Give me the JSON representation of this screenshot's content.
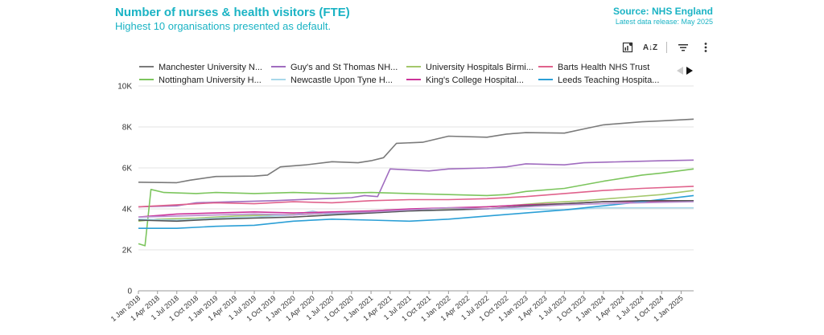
{
  "header": {
    "title": "Number of nurses & health visitors (FTE)",
    "subtitle": "Highest 10 organisations presented as default.",
    "source": "Source: NHS England",
    "release": "Latest data release: May 2025"
  },
  "toolbar": {
    "sort_label": "A↓Z",
    "icons": [
      "chart-settings-icon",
      "sort-az-icon",
      "filter-icon",
      "more-vertical-icon"
    ]
  },
  "chart_data": {
    "type": "line",
    "ylim": [
      0,
      10000
    ],
    "yticks": [
      0,
      2000,
      4000,
      6000,
      8000,
      10000
    ],
    "ytick_labels": [
      "0",
      "2K",
      "4K",
      "6K",
      "8K",
      "10K"
    ],
    "xlim": [
      "2018-01-01",
      "2025-03-01"
    ],
    "xticks": [
      "2018-01-01",
      "2018-04-01",
      "2018-07-01",
      "2018-10-01",
      "2019-01-01",
      "2019-04-01",
      "2019-07-01",
      "2019-10-01",
      "2020-01-01",
      "2020-04-01",
      "2020-07-01",
      "2020-10-01",
      "2021-01-01",
      "2021-04-01",
      "2021-07-01",
      "2021-10-01",
      "2022-01-01",
      "2022-04-01",
      "2022-07-01",
      "2022-10-01",
      "2023-01-01",
      "2023-04-01",
      "2023-07-01",
      "2023-10-01",
      "2024-01-01",
      "2024-04-01",
      "2024-07-01",
      "2024-10-01",
      "2025-01-01"
    ],
    "xtick_labels": [
      "1 Jan 2018",
      "1 Apr 2018",
      "1 Jul 2018",
      "1 Oct 2018",
      "1 Jan 2019",
      "1 Apr 2019",
      "1 Jul 2019",
      "1 Oct 2019",
      "1 Jan 2020",
      "1 Apr 2020",
      "1 Jul 2020",
      "1 Oct 2020",
      "1 Jan 2021",
      "1 Apr 2021",
      "1 Jul 2021",
      "1 Oct 2021",
      "1 Jan 2022",
      "1 Apr 2022",
      "1 Jul 2022",
      "1 Oct 2022",
      "1 Jan 2023",
      "1 Apr 2023",
      "1 Jul 2023",
      "1 Oct 2023",
      "1 Jan 2024",
      "1 Apr 2024",
      "1 Jul 2024",
      "1 Oct 2024",
      "1 Jan 2025"
    ],
    "grid": true,
    "legend_position": "top",
    "series": [
      {
        "name": "Manchester University N...",
        "color": "#7a7a7a",
        "points": [
          [
            "2018-01-01",
            5300
          ],
          [
            "2018-07-01",
            5280
          ],
          [
            "2018-09-01",
            5400
          ],
          [
            "2019-01-01",
            5580
          ],
          [
            "2019-07-01",
            5600
          ],
          [
            "2019-09-01",
            5650
          ],
          [
            "2019-11-01",
            6050
          ],
          [
            "2020-03-01",
            6150
          ],
          [
            "2020-07-01",
            6300
          ],
          [
            "2020-11-01",
            6250
          ],
          [
            "2021-01-01",
            6350
          ],
          [
            "2021-03-01",
            6500
          ],
          [
            "2021-05-01",
            7200
          ],
          [
            "2021-09-01",
            7250
          ],
          [
            "2022-01-01",
            7550
          ],
          [
            "2022-07-01",
            7500
          ],
          [
            "2022-10-01",
            7650
          ],
          [
            "2023-01-01",
            7720
          ],
          [
            "2023-07-01",
            7700
          ],
          [
            "2023-10-01",
            7900
          ],
          [
            "2024-01-01",
            8100
          ],
          [
            "2024-07-01",
            8250
          ],
          [
            "2024-10-01",
            8300
          ],
          [
            "2025-03-01",
            8380
          ]
        ]
      },
      {
        "name": "Guy's and St Thomas NH...",
        "color": "#a06cbf",
        "points": [
          [
            "2018-01-01",
            4100
          ],
          [
            "2018-07-01",
            4150
          ],
          [
            "2018-10-01",
            4300
          ],
          [
            "2019-04-01",
            4350
          ],
          [
            "2019-10-01",
            4400
          ],
          [
            "2020-04-01",
            4480
          ],
          [
            "2020-10-01",
            4550
          ],
          [
            "2020-12-01",
            4650
          ],
          [
            "2021-02-01",
            4600
          ],
          [
            "2021-04-01",
            5950
          ],
          [
            "2021-07-01",
            5900
          ],
          [
            "2021-10-01",
            5850
          ],
          [
            "2022-01-01",
            5950
          ],
          [
            "2022-07-01",
            6000
          ],
          [
            "2022-10-01",
            6050
          ],
          [
            "2023-01-01",
            6200
          ],
          [
            "2023-07-01",
            6150
          ],
          [
            "2023-10-01",
            6250
          ],
          [
            "2024-04-01",
            6300
          ],
          [
            "2024-10-01",
            6350
          ],
          [
            "2025-03-01",
            6380
          ]
        ]
      },
      {
        "name": "University Hospitals Birmi...",
        "color": "#a4c76b",
        "points": [
          [
            "2018-01-01",
            3400
          ],
          [
            "2018-04-01",
            3500
          ],
          [
            "2018-10-01",
            3550
          ],
          [
            "2019-04-01",
            3650
          ],
          [
            "2019-10-01",
            3700
          ],
          [
            "2020-04-01",
            3750
          ],
          [
            "2020-10-01",
            3850
          ],
          [
            "2021-04-01",
            3950
          ],
          [
            "2021-10-01",
            4000
          ],
          [
            "2022-04-01",
            4050
          ],
          [
            "2022-10-01",
            4150
          ],
          [
            "2023-04-01",
            4300
          ],
          [
            "2023-10-01",
            4400
          ],
          [
            "2024-04-01",
            4550
          ],
          [
            "2024-10-01",
            4700
          ],
          [
            "2025-03-01",
            4900
          ]
        ]
      },
      {
        "name": "Barts Health NHS Trust",
        "color": "#e0628c",
        "points": [
          [
            "2018-01-01",
            4100
          ],
          [
            "2018-07-01",
            4200
          ],
          [
            "2019-01-01",
            4300
          ],
          [
            "2019-07-01",
            4250
          ],
          [
            "2020-01-01",
            4350
          ],
          [
            "2020-07-01",
            4300
          ],
          [
            "2021-01-01",
            4400
          ],
          [
            "2021-07-01",
            4450
          ],
          [
            "2022-01-01",
            4450
          ],
          [
            "2022-07-01",
            4500
          ],
          [
            "2023-01-01",
            4600
          ],
          [
            "2023-07-01",
            4750
          ],
          [
            "2024-01-01",
            4900
          ],
          [
            "2024-07-01",
            5000
          ],
          [
            "2025-03-01",
            5100
          ]
        ]
      },
      {
        "name": "Nottingham University H...",
        "color": "#7cc55d",
        "points": [
          [
            "2018-01-01",
            2300
          ],
          [
            "2018-02-01",
            2200
          ],
          [
            "2018-03-01",
            4950
          ],
          [
            "2018-05-01",
            4800
          ],
          [
            "2018-10-01",
            4750
          ],
          [
            "2019-01-01",
            4800
          ],
          [
            "2019-07-01",
            4750
          ],
          [
            "2020-01-01",
            4800
          ],
          [
            "2020-07-01",
            4750
          ],
          [
            "2021-01-01",
            4800
          ],
          [
            "2021-07-01",
            4750
          ],
          [
            "2022-01-01",
            4700
          ],
          [
            "2022-07-01",
            4650
          ],
          [
            "2022-10-01",
            4700
          ],
          [
            "2023-01-01",
            4850
          ],
          [
            "2023-07-01",
            5000
          ],
          [
            "2024-01-01",
            5350
          ],
          [
            "2024-07-01",
            5650
          ],
          [
            "2024-10-01",
            5750
          ],
          [
            "2025-03-01",
            5950
          ]
        ]
      },
      {
        "name": "Newcastle Upon Tyne H...",
        "color": "#a8d8ea",
        "points": [
          [
            "2018-01-01",
            3500
          ],
          [
            "2018-07-01",
            3450
          ],
          [
            "2019-01-01",
            3550
          ],
          [
            "2019-07-01",
            3600
          ],
          [
            "2020-01-01",
            3700
          ],
          [
            "2020-04-01",
            3900
          ],
          [
            "2020-06-01",
            3750
          ],
          [
            "2021-01-01",
            3800
          ],
          [
            "2021-07-01",
            3900
          ],
          [
            "2022-01-01",
            3950
          ],
          [
            "2022-07-01",
            4000
          ],
          [
            "2023-01-01",
            4000
          ],
          [
            "2023-07-01",
            3950
          ],
          [
            "2024-01-01",
            4050
          ],
          [
            "2024-07-01",
            4050
          ],
          [
            "2025-03-01",
            4050
          ]
        ]
      },
      {
        "name": "King's College Hospital...",
        "color": "#cc3399",
        "points": [
          [
            "2018-01-01",
            3600
          ],
          [
            "2018-07-01",
            3750
          ],
          [
            "2019-01-01",
            3800
          ],
          [
            "2019-07-01",
            3850
          ],
          [
            "2020-01-01",
            3800
          ],
          [
            "2020-07-01",
            3850
          ],
          [
            "2021-01-01",
            3900
          ],
          [
            "2021-07-01",
            4000
          ],
          [
            "2022-01-01",
            4050
          ],
          [
            "2022-07-01",
            4100
          ],
          [
            "2023-01-01",
            4200
          ],
          [
            "2023-07-01",
            4250
          ],
          [
            "2024-01-01",
            4350
          ],
          [
            "2024-07-01",
            4350
          ],
          [
            "2025-03-01",
            4400
          ]
        ]
      },
      {
        "name": "Leeds Teaching Hospita...",
        "color": "#2b9fd6",
        "points": [
          [
            "2018-01-01",
            3050
          ],
          [
            "2018-07-01",
            3050
          ],
          [
            "2019-01-01",
            3150
          ],
          [
            "2019-07-01",
            3200
          ],
          [
            "2020-01-01",
            3400
          ],
          [
            "2020-07-01",
            3500
          ],
          [
            "2021-01-01",
            3450
          ],
          [
            "2021-07-01",
            3400
          ],
          [
            "2022-01-01",
            3500
          ],
          [
            "2022-07-01",
            3650
          ],
          [
            "2023-01-01",
            3800
          ],
          [
            "2023-07-01",
            3950
          ],
          [
            "2024-01-01",
            4150
          ],
          [
            "2024-07-01",
            4350
          ],
          [
            "2025-03-01",
            4650
          ]
        ]
      },
      {
        "color": "#555555",
        "points": [
          [
            "2018-01-01",
            3450
          ],
          [
            "2018-07-01",
            3400
          ],
          [
            "2019-01-01",
            3500
          ],
          [
            "2019-07-01",
            3550
          ],
          [
            "2020-01-01",
            3600
          ],
          [
            "2020-07-01",
            3700
          ],
          [
            "2021-01-01",
            3800
          ],
          [
            "2021-07-01",
            3900
          ],
          [
            "2022-01-01",
            3950
          ],
          [
            "2022-07-01",
            4000
          ],
          [
            "2023-01-01",
            4150
          ],
          [
            "2023-07-01",
            4250
          ],
          [
            "2024-01-01",
            4350
          ],
          [
            "2024-07-01",
            4400
          ],
          [
            "2025-03-01",
            4400
          ]
        ]
      },
      {
        "color": "#b98fd0",
        "points": [
          [
            "2018-01-01",
            3600
          ],
          [
            "2018-07-01",
            3650
          ],
          [
            "2019-01-01",
            3700
          ],
          [
            "2019-07-01",
            3750
          ],
          [
            "2020-01-01",
            3700
          ],
          [
            "2020-07-01",
            3800
          ],
          [
            "2021-01-01",
            3850
          ],
          [
            "2021-07-01",
            3950
          ],
          [
            "2022-01-01",
            4050
          ],
          [
            "2022-07-01",
            4000
          ],
          [
            "2023-01-01",
            4100
          ],
          [
            "2023-07-01",
            4200
          ],
          [
            "2024-01-01",
            4250
          ],
          [
            "2024-07-01",
            4300
          ],
          [
            "2025-03-01",
            4350
          ]
        ]
      }
    ]
  }
}
